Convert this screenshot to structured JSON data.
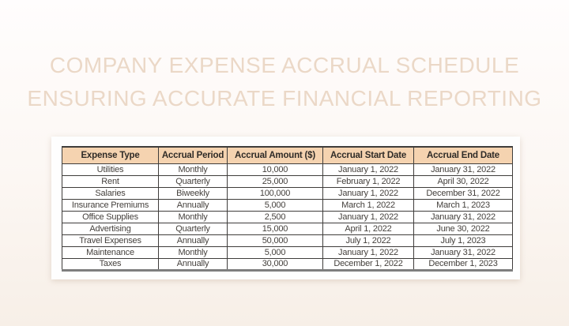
{
  "title": {
    "line1": "COMPANY EXPENSE ACCRUAL SCHEDULE",
    "line2": "ENSURING ACCURATE FINANCIAL REPORTING"
  },
  "colors": {
    "page_bg_top": "#fffdfd",
    "page_bg_bottom": "#f7efe7",
    "title_text": "#ebd8c7",
    "panel_bg": "#fefefe",
    "header_bg": "#f5d3b0",
    "header_text": "#2f2b27",
    "cell_text": "#45413d",
    "grid_border": "#3f3d3b",
    "table_bottom_border": "#7e7e7e"
  },
  "table": {
    "columns": [
      "Expense Type",
      "Accrual Period",
      "Accrual Amount ($)",
      "Accrual Start Date",
      "Accrual End Date"
    ],
    "rows": [
      [
        "Utilities",
        "Monthly",
        "10,000",
        "January 1, 2022",
        "January 31, 2022"
      ],
      [
        "Rent",
        "Quarterly",
        "25,000",
        "February 1, 2022",
        "April 30, 2022"
      ],
      [
        "Salaries",
        "Biweekly",
        "100,000",
        "January 1, 2022",
        "December 31, 2022"
      ],
      [
        "Insurance Premiums",
        "Annually",
        "5,000",
        "March 1, 2022",
        "March 1, 2023"
      ],
      [
        "Office Supplies",
        "Monthly",
        "2,500",
        "January 1, 2022",
        "January 31, 2022"
      ],
      [
        "Advertising",
        "Quarterly",
        "15,000",
        "April 1, 2022",
        "June 30, 2022"
      ],
      [
        "Travel Expenses",
        "Annually",
        "50,000",
        "July 1, 2022",
        "July 1, 2023"
      ],
      [
        "Maintenance",
        "Monthly",
        "5,000",
        "January 1, 2022",
        "January 31, 2022"
      ],
      [
        "Taxes",
        "Annually",
        "30,000",
        "December 1, 2022",
        "December 1, 2023"
      ]
    ]
  }
}
